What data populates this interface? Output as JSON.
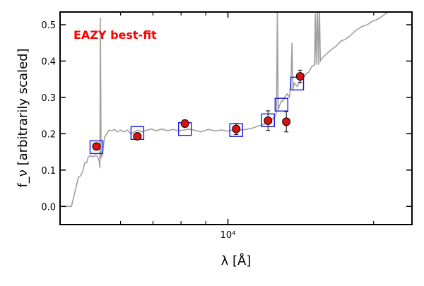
{
  "chart_data": {
    "type": "scatter",
    "annotation": "EAZY best-fit",
    "xlabel": "λ [Å]",
    "ylabel": "f_ν [arbitrarily scaled]",
    "x_scale": "log",
    "xlim": [
      4500,
      24000
    ],
    "ylim": [
      -0.05,
      0.535
    ],
    "y_ticks": [
      0.0,
      0.1,
      0.2,
      0.3,
      0.4,
      0.5
    ],
    "y_tick_labels": [
      "0.0",
      "0.1",
      "0.2",
      "0.3",
      "0.4",
      "0.5"
    ],
    "x_tick_labels": [
      {
        "value": 10000,
        "label": "10⁴"
      }
    ],
    "x_minor_ticks": [
      6000,
      7000,
      8000,
      9000,
      20000
    ],
    "grid": false,
    "colors": {
      "template": "#a0a0a0",
      "model_box": "#1a1adf",
      "observed_fill": "#dd1111",
      "annotation": "#ff0000"
    },
    "series": [
      {
        "kind": "observed",
        "points": [
          {
            "x": 5350,
            "y": 0.165,
            "err": 0.0
          },
          {
            "x": 6500,
            "y": 0.193,
            "err": 0.0
          },
          {
            "x": 8150,
            "y": 0.228,
            "err": 0.01
          },
          {
            "x": 10400,
            "y": 0.213,
            "err": 0.015
          },
          {
            "x": 12100,
            "y": 0.236,
            "err": 0.027
          },
          {
            "x": 13200,
            "y": 0.233,
            "err": 0.028
          },
          {
            "x": 14100,
            "y": 0.358,
            "err": 0.017
          }
        ]
      },
      {
        "kind": "model",
        "points": [
          {
            "x": 5350,
            "y": 0.163
          },
          {
            "x": 6500,
            "y": 0.202
          },
          {
            "x": 8150,
            "y": 0.213
          },
          {
            "x": 10400,
            "y": 0.21
          },
          {
            "x": 12100,
            "y": 0.237
          },
          {
            "x": 12900,
            "y": 0.28
          },
          {
            "x": 13900,
            "y": 0.338
          }
        ]
      },
      {
        "kind": "template",
        "points": [
          [
            4550,
            0.0
          ],
          [
            4750,
            0.0
          ],
          [
            4830,
            0.04
          ],
          [
            4910,
            0.08
          ],
          [
            4960,
            0.084
          ],
          [
            5010,
            0.095
          ],
          [
            5060,
            0.12
          ],
          [
            5110,
            0.12
          ],
          [
            5140,
            0.135
          ],
          [
            5200,
            0.14
          ],
          [
            5260,
            0.136
          ],
          [
            5320,
            0.14
          ],
          [
            5370,
            0.138
          ],
          [
            5420,
            0.125
          ],
          [
            5440,
            0.105
          ],
          [
            5450,
            0.52
          ],
          [
            5470,
            0.135
          ],
          [
            5500,
            0.14
          ],
          [
            5560,
            0.19
          ],
          [
            5620,
            0.2
          ],
          [
            5680,
            0.21
          ],
          [
            5750,
            0.208
          ],
          [
            5830,
            0.212
          ],
          [
            5900,
            0.205
          ],
          [
            6000,
            0.21
          ],
          [
            6100,
            0.205
          ],
          [
            6200,
            0.21
          ],
          [
            6300,
            0.2
          ],
          [
            6400,
            0.205
          ],
          [
            6500,
            0.21
          ],
          [
            6650,
            0.205
          ],
          [
            6800,
            0.21
          ],
          [
            6950,
            0.213
          ],
          [
            7100,
            0.208
          ],
          [
            7300,
            0.213
          ],
          [
            7500,
            0.208
          ],
          [
            7700,
            0.212
          ],
          [
            7900,
            0.208
          ],
          [
            8100,
            0.21
          ],
          [
            8300,
            0.213
          ],
          [
            8500,
            0.21
          ],
          [
            8800,
            0.205
          ],
          [
            9100,
            0.212
          ],
          [
            9400,
            0.208
          ],
          [
            9700,
            0.21
          ],
          [
            10000,
            0.207
          ],
          [
            10300,
            0.212
          ],
          [
            10600,
            0.21
          ],
          [
            10900,
            0.212
          ],
          [
            11200,
            0.215
          ],
          [
            11500,
            0.22
          ],
          [
            11800,
            0.225
          ],
          [
            12100,
            0.23
          ],
          [
            12350,
            0.24
          ],
          [
            12450,
            0.245
          ],
          [
            12550,
            0.25
          ],
          [
            12600,
            0.26
          ],
          [
            12650,
            0.55
          ],
          [
            12700,
            0.265
          ],
          [
            12800,
            0.28
          ],
          [
            12900,
            0.29
          ],
          [
            13000,
            0.29
          ],
          [
            13100,
            0.3
          ],
          [
            13250,
            0.31
          ],
          [
            13400,
            0.3
          ],
          [
            13500,
            0.35
          ],
          [
            13560,
            0.45
          ],
          [
            13620,
            0.32
          ],
          [
            13700,
            0.34
          ],
          [
            13900,
            0.33
          ],
          [
            14100,
            0.345
          ],
          [
            14300,
            0.355
          ],
          [
            14500,
            0.365
          ],
          [
            14700,
            0.37
          ],
          [
            14900,
            0.385
          ],
          [
            15100,
            0.39
          ],
          [
            15150,
            0.53
          ],
          [
            15220,
            0.39
          ],
          [
            15300,
            0.55
          ],
          [
            15380,
            0.39
          ],
          [
            15450,
            0.55
          ],
          [
            15520,
            0.4
          ],
          [
            15700,
            0.41
          ],
          [
            16000,
            0.42
          ],
          [
            16300,
            0.43
          ],
          [
            16700,
            0.44
          ],
          [
            17100,
            0.455
          ],
          [
            17500,
            0.46
          ],
          [
            17900,
            0.47
          ],
          [
            18400,
            0.485
          ],
          [
            18900,
            0.495
          ],
          [
            19400,
            0.5
          ],
          [
            19900,
            0.51
          ],
          [
            20400,
            0.515
          ],
          [
            20900,
            0.525
          ],
          [
            21400,
            0.535
          ],
          [
            21900,
            0.535
          ]
        ]
      }
    ]
  }
}
